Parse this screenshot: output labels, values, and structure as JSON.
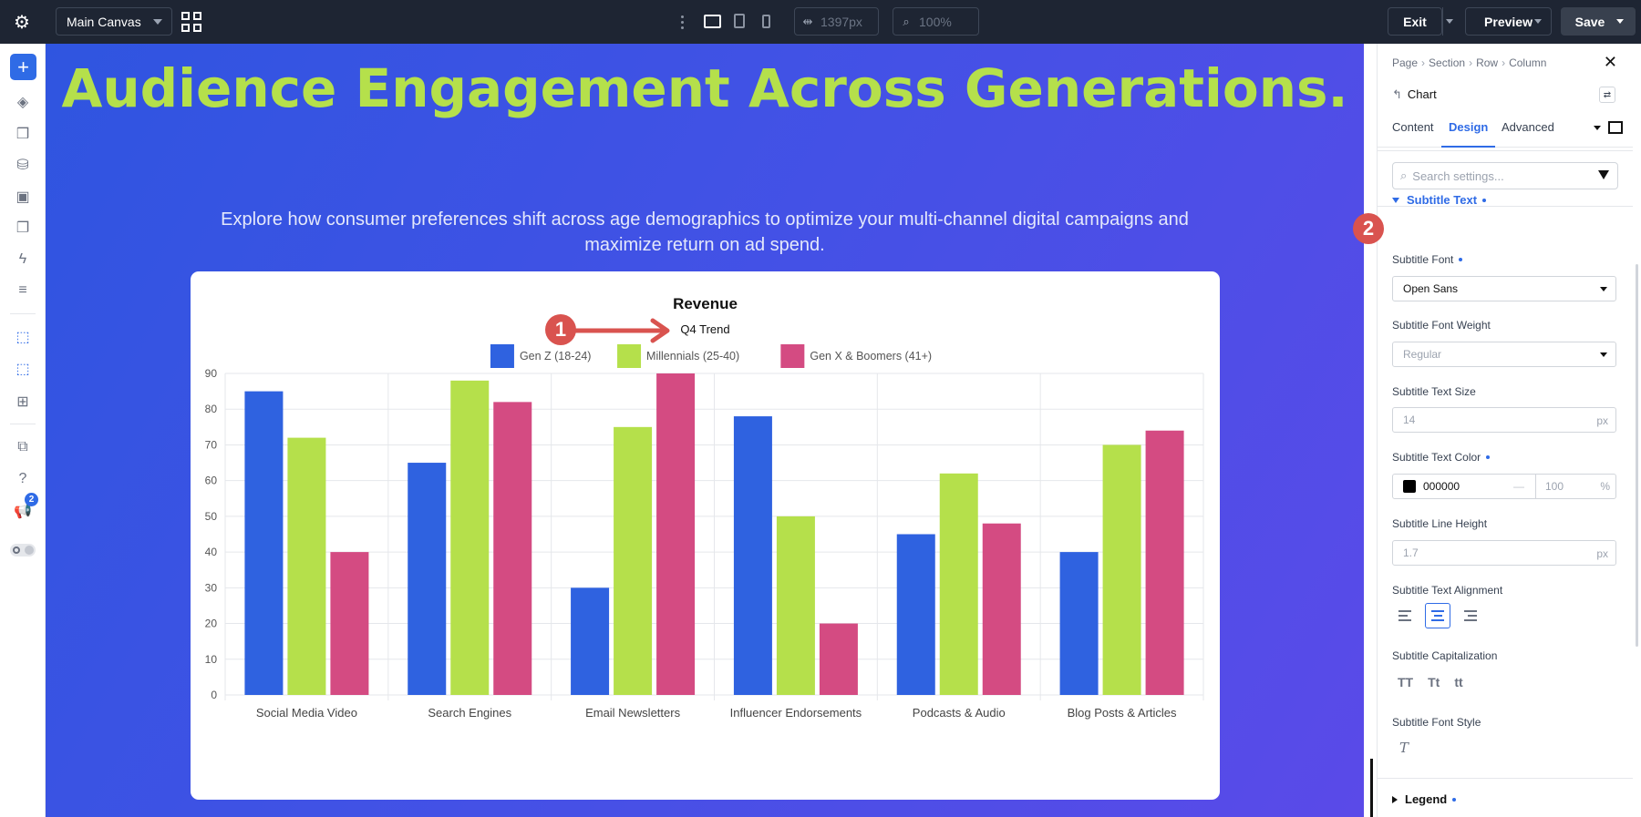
{
  "topbar": {
    "canvas_select": "Main Canvas",
    "width_value": "1397px",
    "zoom_value": "100%",
    "exit_label": "Exit",
    "preview_label": "Preview",
    "save_label": "Save"
  },
  "sidebar": {
    "badge_count": "2"
  },
  "hero": {
    "title": "Audience Engagement Across Generations.",
    "subtitle": "Explore how consumer preferences shift across age demographics to optimize your multi-channel digital campaigns and maximize return on ad spend."
  },
  "annotations": {
    "one": "1",
    "two": "2"
  },
  "chart_data": {
    "type": "bar",
    "title": "Revenue",
    "subtitle": "Q4 Trend",
    "categories": [
      "Social Media Video",
      "Search Engines",
      "Email Newsletters",
      "Influencer Endorsements",
      "Podcasts & Audio",
      "Blog Posts & Articles"
    ],
    "series": [
      {
        "name": "Gen Z (18-24)",
        "color": "#2f62e0",
        "values": [
          85,
          65,
          30,
          78,
          45,
          40
        ]
      },
      {
        "name": "Millennials (25-40)",
        "color": "#b5e04b",
        "values": [
          72,
          88,
          75,
          50,
          62,
          70
        ]
      },
      {
        "name": "Gen X & Boomers (41+)",
        "color": "#d44b82",
        "values": [
          40,
          82,
          90,
          20,
          48,
          74
        ]
      }
    ],
    "ylim": [
      0,
      90
    ],
    "yticks": [
      0,
      10,
      20,
      30,
      40,
      50,
      60,
      70,
      80,
      90
    ],
    "grid": true,
    "legend": "top"
  },
  "panel": {
    "breadcrumb": [
      "Page",
      "Section",
      "Row",
      "Column"
    ],
    "module_title": "Chart",
    "tabs": [
      "Content",
      "Design",
      "Advanced"
    ],
    "search_placeholder": "Search settings...",
    "group_title": "Subtitle Text",
    "subtitle_font_label": "Subtitle Font",
    "subtitle_font_value": "Open Sans",
    "weight_label": "Subtitle Font Weight",
    "weight_value": "Regular",
    "size_label": "Subtitle Text Size",
    "size_value": "14",
    "size_unit": "px",
    "color_label": "Subtitle Text Color",
    "color_value": "000000",
    "color_swatch": "#000000",
    "opacity_value": "100",
    "opacity_unit": "%",
    "line_height_label": "Subtitle Line Height",
    "line_height_value": "1.7",
    "line_height_unit": "px",
    "alignment_label": "Subtitle Text Alignment",
    "capitalization_label": "Subtitle Capitalization",
    "cap_options": [
      "TT",
      "Tt",
      "tt"
    ],
    "font_style_label": "Subtitle Font Style",
    "font_style_value": "T",
    "legend_group": "Legend"
  },
  "colors": {
    "accent": "#2f6be6",
    "topbar": "#1e2533",
    "title_green": "#b5e04b",
    "annotation_red": "#d9534f"
  }
}
